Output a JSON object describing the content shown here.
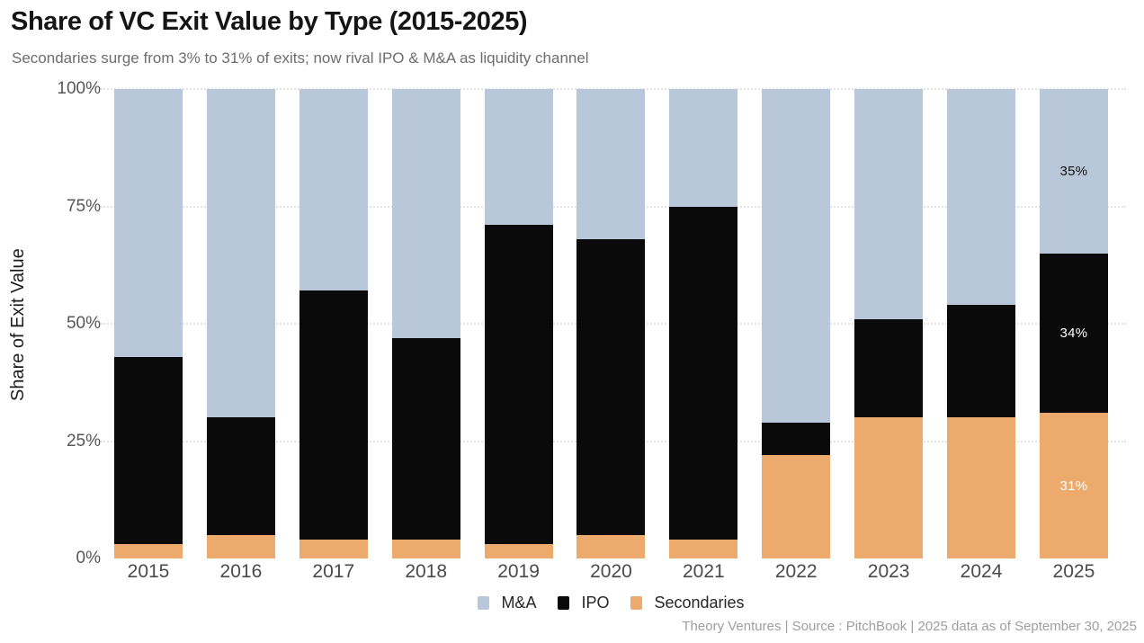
{
  "header": {
    "title": "Share of VC Exit Value by Type (2015-2025)",
    "subtitle": "Secondaries surge from 3% to 31% of exits; now rival IPO & M&A as liquidity channel"
  },
  "chart_data": {
    "type": "bar",
    "stacked": true,
    "title": "Share of VC Exit Value by Type (2015-2025)",
    "subtitle": "Secondaries surge from 3% to 31% of exits; now rival IPO & M&A as liquidity channel",
    "xlabel": "",
    "ylabel": "Share of Exit Value",
    "ylim": [
      0,
      100
    ],
    "yticks": [
      0,
      25,
      50,
      75,
      100
    ],
    "ytick_labels": [
      "0%",
      "25%",
      "50%",
      "75%",
      "100%"
    ],
    "grid": "horizontal dotted lines at 25/50/75/100",
    "legend_position": "bottom-center",
    "categories": [
      "2015",
      "2016",
      "2017",
      "2018",
      "2019",
      "2020",
      "2021",
      "2022",
      "2023",
      "2024",
      "2025"
    ],
    "series": [
      {
        "name": "Secondaries",
        "color": "#edaa6d",
        "values": [
          3,
          5,
          4,
          4,
          3,
          5,
          4,
          22,
          30,
          30,
          31
        ]
      },
      {
        "name": "IPO",
        "color": "#0a0a0b",
        "values": [
          40,
          25,
          53,
          43,
          68,
          63,
          71,
          7,
          21,
          24,
          34
        ]
      },
      {
        "name": "M&A",
        "color": "#b9c7da",
        "values": [
          57,
          70,
          43,
          53,
          29,
          32,
          25,
          71,
          49,
          46,
          35
        ]
      }
    ],
    "bar_value_labels": [
      {
        "category": "2025",
        "series": "M&A",
        "text": "35%",
        "color": "#111111"
      },
      {
        "category": "2025",
        "series": "IPO",
        "text": "34%",
        "color": "#ffffff"
      },
      {
        "category": "2025",
        "series": "Secondaries",
        "text": "31%",
        "color": "#ffffff"
      }
    ]
  },
  "legend": {
    "items": [
      {
        "label": "M&A",
        "color": "#b9c7da"
      },
      {
        "label": "IPO",
        "color": "#0a0a0b"
      },
      {
        "label": "Secondaries",
        "color": "#edaa6d"
      }
    ]
  },
  "footer": {
    "credit": "Theory Ventures | Source : PitchBook | 2025 data as of September 30, 2025"
  }
}
